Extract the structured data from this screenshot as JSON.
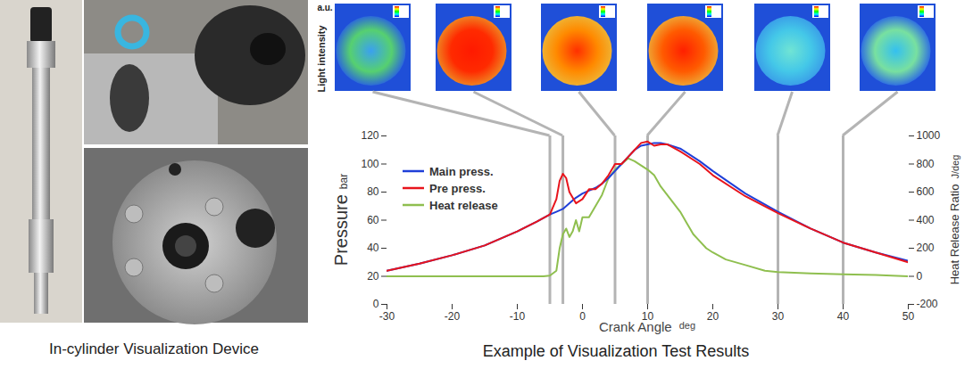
{
  "chart_data": {
    "type": "line",
    "title": "Example of Visualization Test Results",
    "xlabel": "Crank Angle",
    "xlabel_unit": "deg",
    "ylabel": "Pressure",
    "ylabel_unit": "bar",
    "y2label": "Heat Release Ratio",
    "y2label_unit": "J/deg",
    "xlim": [
      -30,
      50
    ],
    "xticks": [
      -30,
      -20,
      -10,
      0,
      10,
      20,
      30,
      40,
      50
    ],
    "ylim": [
      0,
      120
    ],
    "yticks": [
      0,
      20,
      40,
      60,
      80,
      100,
      120
    ],
    "y2lim": [
      -200,
      1000
    ],
    "y2ticks": [
      -200,
      0,
      200,
      400,
      600,
      800,
      1000
    ],
    "grid": false,
    "legend": "top-left",
    "series": [
      {
        "name": "Main press.",
        "color": "#1f3fd8",
        "line_style": "solid",
        "x": [
          -30,
          -25,
          -20,
          -15,
          -10,
          -7,
          -5,
          -4,
          -3,
          -2,
          -1,
          0,
          1,
          2,
          3,
          4,
          5,
          6,
          7,
          8,
          9,
          10,
          11,
          12,
          13,
          15,
          18,
          20,
          25,
          30,
          35,
          40,
          45,
          50
        ],
        "values": [
          24,
          29,
          35,
          42,
          52,
          59,
          64,
          66,
          68,
          72,
          76,
          79,
          81,
          83,
          86,
          90,
          95,
          100,
          105,
          110,
          113,
          114,
          115,
          115,
          114,
          111,
          102,
          95,
          79,
          66,
          54,
          44,
          37,
          31
        ]
      },
      {
        "name": "Pre press.",
        "color": "#e8141c",
        "line_style": "solid",
        "x": [
          -30,
          -25,
          -20,
          -15,
          -10,
          -7,
          -5,
          -4,
          -3.5,
          -3,
          -2.5,
          -2,
          -1,
          0,
          1,
          2,
          3,
          4,
          5,
          6,
          7,
          8,
          9,
          10,
          11,
          12,
          13,
          15,
          18,
          20,
          25,
          30,
          35,
          40,
          45,
          50
        ],
        "values": [
          24,
          29,
          35,
          42,
          52,
          59,
          64,
          75,
          88,
          93,
          90,
          80,
          72,
          75,
          82,
          82,
          86,
          92,
          100,
          100,
          105,
          110,
          115,
          116,
          113,
          114,
          114,
          109,
          100,
          92,
          77,
          65,
          54,
          44,
          37,
          30
        ]
      },
      {
        "name": "Heat release",
        "color": "#8fbf4f",
        "line_style": "solid",
        "axis": "y2",
        "x": [
          -30,
          -20,
          -10,
          -6,
          -5,
          -4,
          -3.5,
          -3,
          -2.5,
          -2,
          -1.5,
          -1,
          -0.5,
          0,
          1,
          2,
          3,
          4,
          5,
          6,
          7,
          8,
          9,
          10,
          11,
          12,
          13,
          14,
          15,
          16,
          17,
          18,
          19,
          20,
          22,
          25,
          28,
          30,
          35,
          40,
          45,
          50
        ],
        "values": [
          0,
          0,
          0,
          0,
          5,
          40,
          200,
          300,
          340,
          280,
          320,
          400,
          320,
          420,
          420,
          500,
          580,
          700,
          760,
          800,
          840,
          820,
          790,
          760,
          720,
          640,
          580,
          520,
          460,
          380,
          300,
          250,
          200,
          170,
          120,
          80,
          40,
          30,
          20,
          15,
          10,
          0
        ]
      }
    ],
    "snapshot_angles": [
      -5,
      -3,
      5,
      10,
      30,
      40
    ],
    "snapshot_label": "Light intensity",
    "snapshot_unit": "a.u."
  },
  "device_caption": "In-cylinder Visualization Device"
}
